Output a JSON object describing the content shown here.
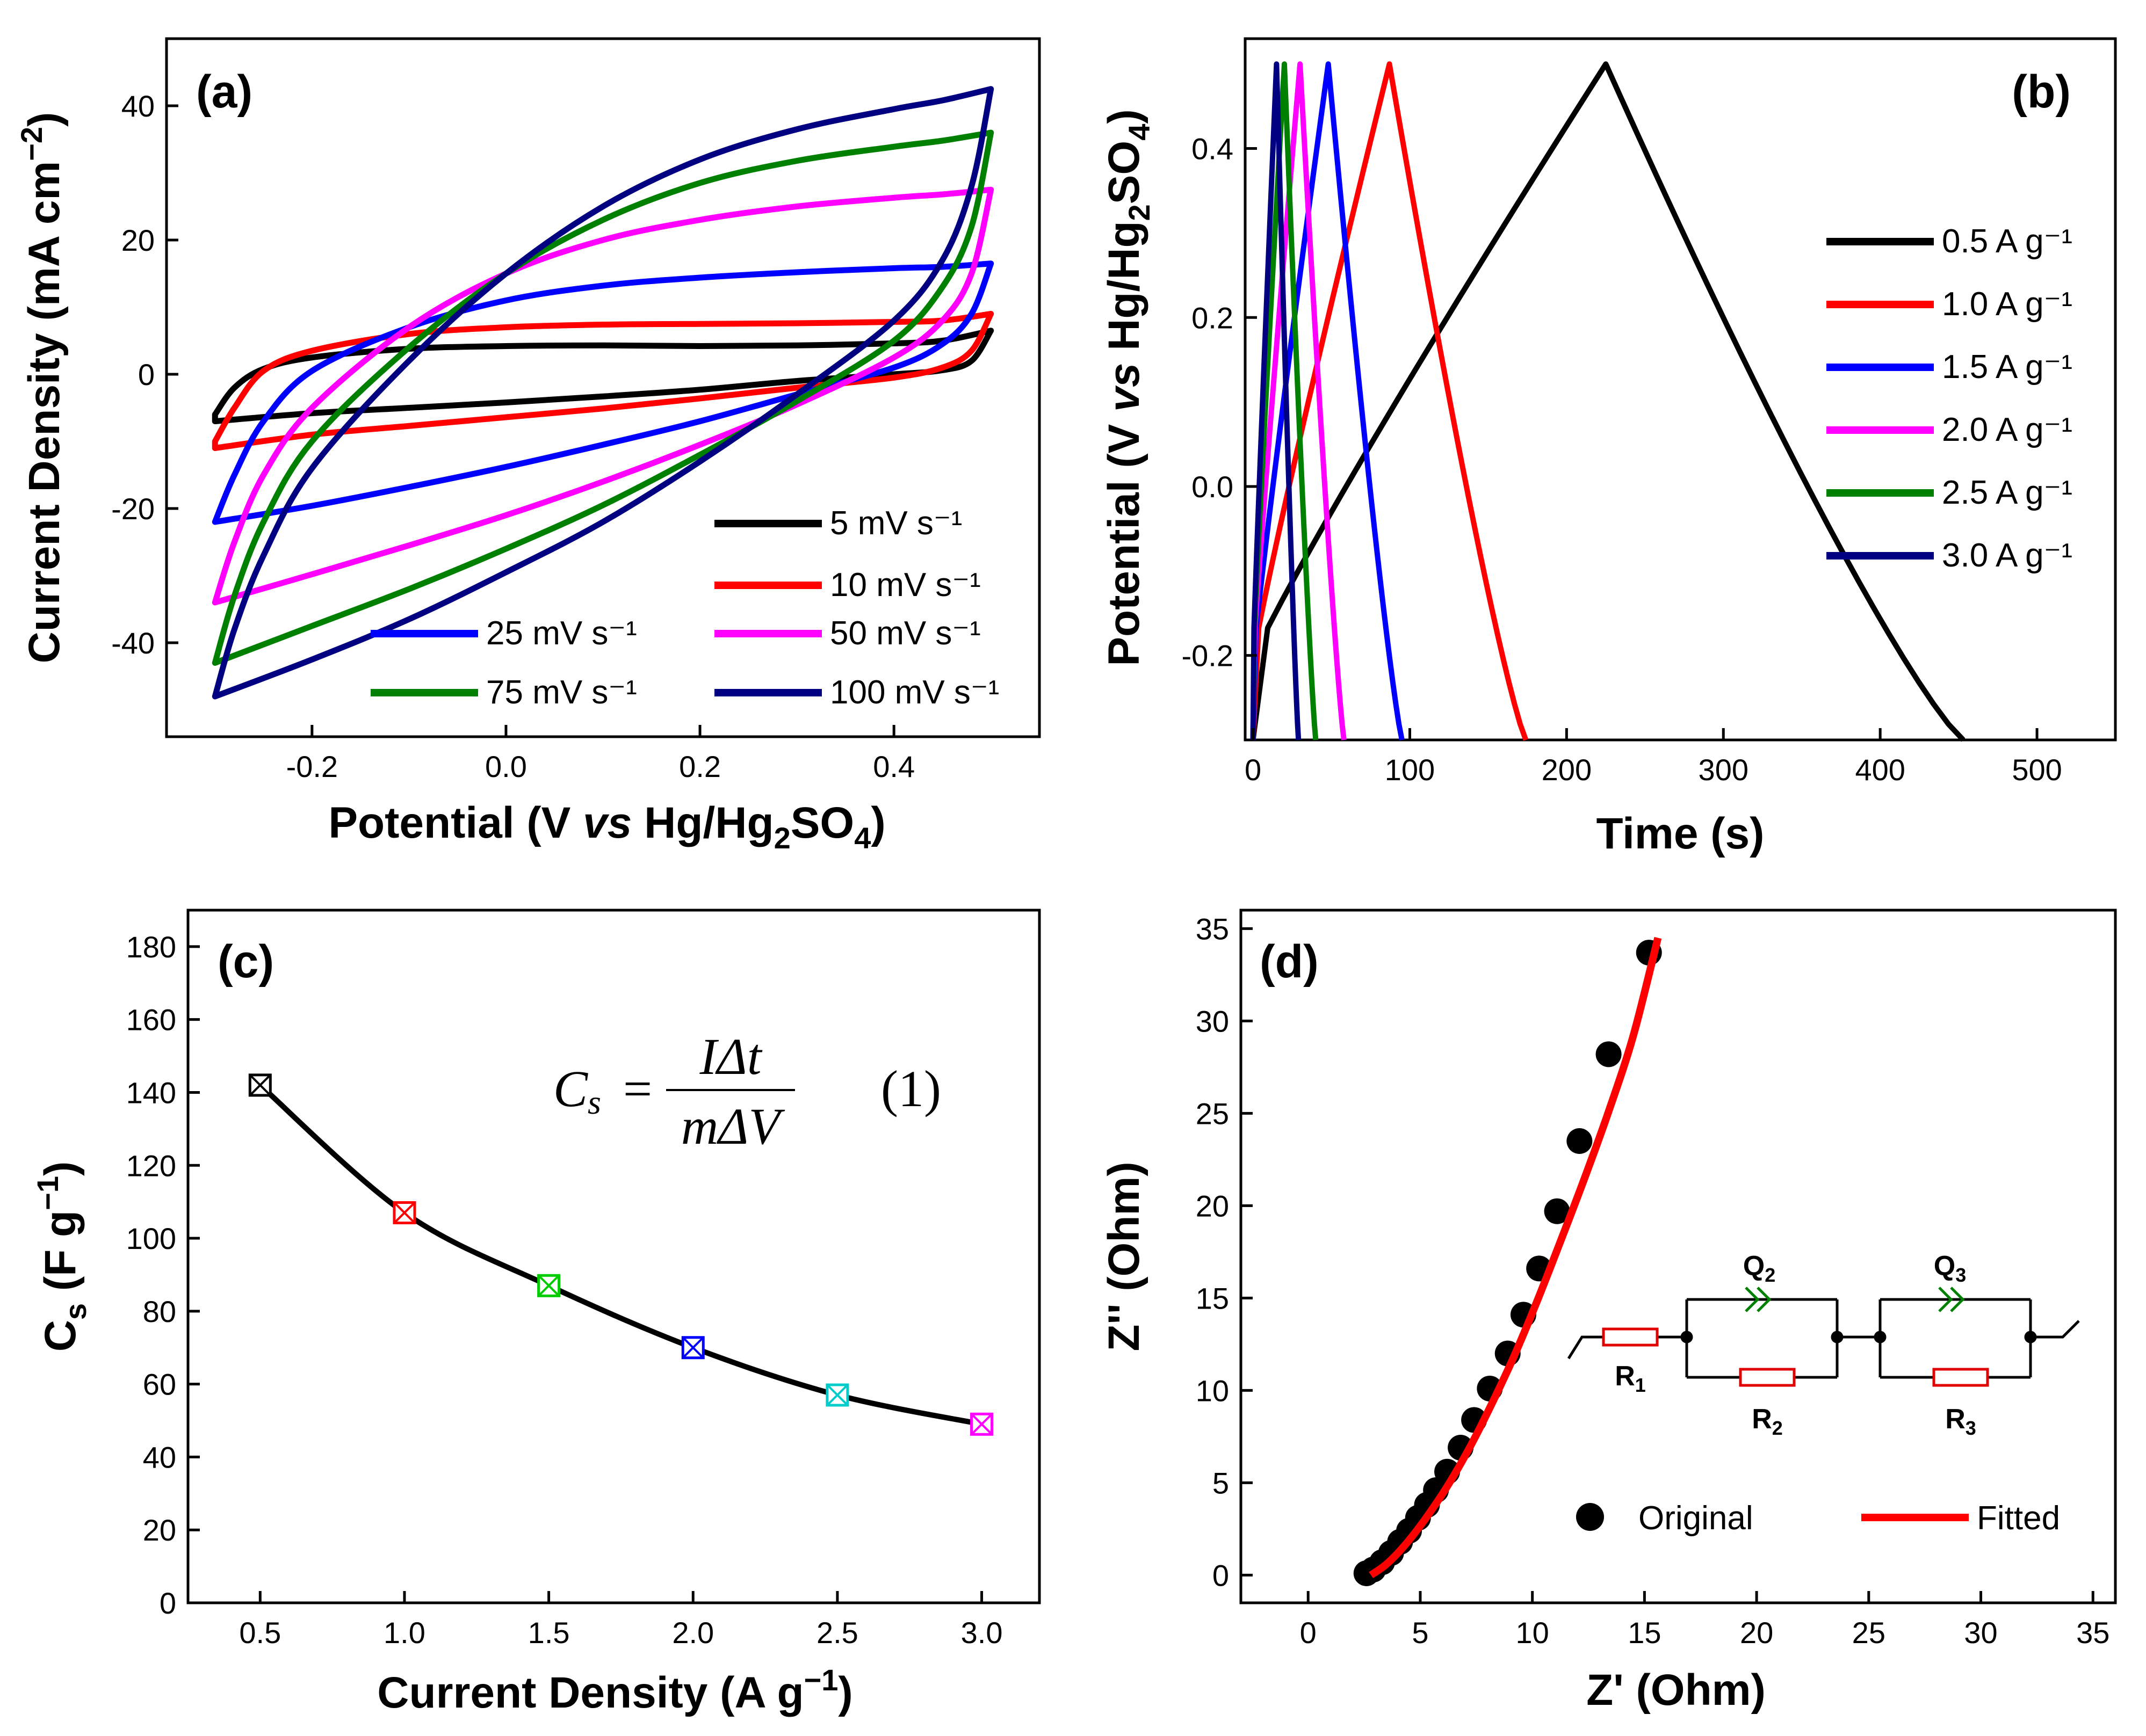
{
  "panels": {
    "a": {
      "label": "(a)",
      "ylabel_parts": [
        "Current Density (mA cm",
        "−2",
        ")"
      ],
      "xlabel_parts": [
        "Potential (V ",
        "vs",
        " Hg/Hg",
        "2",
        "SO",
        "4",
        ")"
      ]
    },
    "b": {
      "label": "(b)",
      "ylabel_parts": [
        "Potential (V ",
        "vs",
        " Hg/Hg",
        "2",
        "SO",
        "4",
        ")"
      ],
      "xlabel": "Time (s)"
    },
    "c": {
      "label": "(c)",
      "ylabel_parts": [
        "C",
        "s",
        " (F g",
        "−1",
        ")"
      ],
      "xlabel_parts": [
        "Current Density (A g",
        "−1",
        ")"
      ],
      "equation": {
        "lhs_main": "C",
        "lhs_sub": "s",
        "eq": "=",
        "num": "IΔt",
        "den": "mΔV",
        "number": "(1)"
      }
    },
    "d": {
      "label": "(d)",
      "ylabel": "Z'' (Ohm)",
      "xlabel": "Z' (Ohm)",
      "circuit": {
        "r1": [
          "R",
          "1"
        ],
        "r2": [
          "R",
          "2"
        ],
        "r3": [
          "R",
          "3"
        ],
        "q2": [
          "Q",
          "2"
        ],
        "q3": [
          "Q",
          "3"
        ]
      }
    }
  },
  "chart_data": [
    {
      "id": "a",
      "type": "line",
      "title": "(a)",
      "xlabel": "Potential (V vs Hg/Hg2SO4)",
      "ylabel": "Current Density (mA cm−2)",
      "xlim": [
        -0.35,
        0.55
      ],
      "ylim": [
        -54,
        50
      ],
      "xticks": [
        -0.2,
        0.0,
        0.2,
        0.4
      ],
      "xtick_labels": [
        "-0.2",
        "0.0",
        "0.2",
        "0.4"
      ],
      "yticks": [
        -40,
        -20,
        0,
        20,
        40
      ],
      "ytick_labels": [
        "-40",
        "-20",
        "0",
        "20",
        "40"
      ],
      "legend_position": "bottom-right",
      "series": [
        {
          "name": "5 mV s⁻¹",
          "color": "#000000",
          "upper": [
            [
              -0.3,
              -6
            ],
            [
              -0.28,
              -2
            ],
            [
              -0.25,
              0.8
            ],
            [
              -0.2,
              2.5
            ],
            [
              -0.1,
              3.8
            ],
            [
              0.0,
              4.2
            ],
            [
              0.1,
              4.3
            ],
            [
              0.2,
              4.2
            ],
            [
              0.3,
              4.3
            ],
            [
              0.4,
              4.6
            ],
            [
              0.45,
              5.0
            ],
            [
              0.5,
              6.5
            ]
          ],
          "lower": [
            [
              0.5,
              6.5
            ],
            [
              0.48,
              2.0
            ],
            [
              0.45,
              0.6
            ],
            [
              0.4,
              0.0
            ],
            [
              0.3,
              -1.0
            ],
            [
              0.2,
              -2.3
            ],
            [
              0.1,
              -3.3
            ],
            [
              0.0,
              -4.2
            ],
            [
              -0.1,
              -5.0
            ],
            [
              -0.2,
              -5.8
            ],
            [
              -0.3,
              -7
            ]
          ]
        },
        {
          "name": "10 mV s⁻¹",
          "color": "#ff0000",
          "upper": [
            [
              -0.3,
              -10
            ],
            [
              -0.28,
              -5
            ],
            [
              -0.25,
              0.5
            ],
            [
              -0.2,
              3.5
            ],
            [
              -0.1,
              6.0
            ],
            [
              0.0,
              7.0
            ],
            [
              0.1,
              7.4
            ],
            [
              0.2,
              7.5
            ],
            [
              0.3,
              7.6
            ],
            [
              0.4,
              7.8
            ],
            [
              0.45,
              8.0
            ],
            [
              0.5,
              9.0
            ]
          ],
          "lower": [
            [
              0.5,
              9.0
            ],
            [
              0.48,
              3.5
            ],
            [
              0.45,
              1.0
            ],
            [
              0.4,
              -0.5
            ],
            [
              0.3,
              -2.0
            ],
            [
              0.2,
              -3.6
            ],
            [
              0.1,
              -5.1
            ],
            [
              0.0,
              -6.4
            ],
            [
              -0.1,
              -7.7
            ],
            [
              -0.2,
              -9.0
            ],
            [
              -0.3,
              -11
            ]
          ]
        },
        {
          "name": "25 mV s⁻¹",
          "color": "#0000ff",
          "upper": [
            [
              -0.3,
              -22
            ],
            [
              -0.28,
              -15
            ],
            [
              -0.25,
              -7
            ],
            [
              -0.2,
              0.5
            ],
            [
              -0.1,
              7
            ],
            [
              0.0,
              11
            ],
            [
              0.1,
              13.2
            ],
            [
              0.2,
              14.4
            ],
            [
              0.3,
              15.2
            ],
            [
              0.4,
              15.8
            ],
            [
              0.45,
              16.0
            ],
            [
              0.5,
              16.5
            ]
          ],
          "lower": [
            [
              0.5,
              16.5
            ],
            [
              0.48,
              9.0
            ],
            [
              0.45,
              4.5
            ],
            [
              0.4,
              1.0
            ],
            [
              0.3,
              -3.0
            ],
            [
              0.2,
              -7.0
            ],
            [
              0.1,
              -10.5
            ],
            [
              0.0,
              -13.8
            ],
            [
              -0.1,
              -16.8
            ],
            [
              -0.2,
              -19.6
            ],
            [
              -0.3,
              -22
            ]
          ]
        },
        {
          "name": "50 mV s⁻¹",
          "color": "#ff00ff",
          "upper": [
            [
              -0.3,
              -34
            ],
            [
              -0.28,
              -25
            ],
            [
              -0.25,
              -15
            ],
            [
              -0.2,
              -5
            ],
            [
              -0.1,
              7
            ],
            [
              0.0,
              15
            ],
            [
              0.1,
              20
            ],
            [
              0.2,
              23
            ],
            [
              0.3,
              25
            ],
            [
              0.4,
              26.3
            ],
            [
              0.45,
              26.8
            ],
            [
              0.5,
              27.5
            ]
          ],
          "lower": [
            [
              0.5,
              27.5
            ],
            [
              0.48,
              15.0
            ],
            [
              0.45,
              8.0
            ],
            [
              0.4,
              2.5
            ],
            [
              0.3,
              -4.5
            ],
            [
              0.2,
              -10.5
            ],
            [
              0.1,
              -16
            ],
            [
              0.0,
              -21
            ],
            [
              -0.1,
              -25.5
            ],
            [
              -0.2,
              -29.8
            ],
            [
              -0.3,
              -34
            ]
          ]
        },
        {
          "name": "75 mV s⁻¹",
          "color": "#008000",
          "upper": [
            [
              -0.3,
              -43
            ],
            [
              -0.28,
              -33
            ],
            [
              -0.25,
              -22
            ],
            [
              -0.2,
              -10
            ],
            [
              -0.1,
              4
            ],
            [
              0.0,
              15
            ],
            [
              0.1,
              23
            ],
            [
              0.2,
              28.5
            ],
            [
              0.3,
              31.8
            ],
            [
              0.4,
              33.9
            ],
            [
              0.45,
              34.8
            ],
            [
              0.5,
              36
            ]
          ],
          "lower": [
            [
              0.5,
              36
            ],
            [
              0.48,
              22
            ],
            [
              0.45,
              13
            ],
            [
              0.4,
              5
            ],
            [
              0.3,
              -4
            ],
            [
              0.2,
              -12
            ],
            [
              0.1,
              -19.5
            ],
            [
              0.0,
              -26
            ],
            [
              -0.1,
              -32
            ],
            [
              -0.2,
              -37.5
            ],
            [
              -0.3,
              -43
            ]
          ]
        },
        {
          "name": "100 mV s⁻¹",
          "color": "#000080",
          "upper": [
            [
              -0.3,
              -48
            ],
            [
              -0.28,
              -38
            ],
            [
              -0.25,
              -27
            ],
            [
              -0.2,
              -14
            ],
            [
              -0.1,
              2
            ],
            [
              0.0,
              15
            ],
            [
              0.1,
              25
            ],
            [
              0.2,
              32
            ],
            [
              0.3,
              36.5
            ],
            [
              0.4,
              39.5
            ],
            [
              0.45,
              40.8
            ],
            [
              0.5,
              42.5
            ]
          ],
          "lower": [
            [
              0.5,
              42.5
            ],
            [
              0.48,
              28
            ],
            [
              0.45,
              17
            ],
            [
              0.4,
              8
            ],
            [
              0.3,
              -3
            ],
            [
              0.2,
              -13
            ],
            [
              0.1,
              -22
            ],
            [
              0.0,
              -29.5
            ],
            [
              -0.1,
              -36.5
            ],
            [
              -0.2,
              -42.5
            ],
            [
              -0.3,
              -48
            ]
          ]
        }
      ]
    },
    {
      "id": "b",
      "type": "line",
      "title": "(b)",
      "xlabel": "Time (s)",
      "ylabel": "Potential (V vs Hg/Hg2SO4)",
      "xlim": [
        -5,
        550
      ],
      "ylim": [
        -0.3,
        0.53
      ],
      "xticks": [
        0,
        100,
        200,
        300,
        400,
        500
      ],
      "xtick_labels": [
        "0",
        "100",
        "200",
        "300",
        "400",
        "500"
      ],
      "yticks": [
        -0.2,
        0.0,
        0.2,
        0.4
      ],
      "ytick_labels": [
        "-0.2",
        "0.0",
        "0.2",
        "0.4"
      ],
      "legend_position": "right",
      "series": [
        {
          "name": "0.5 A g⁻¹",
          "color": "#000000",
          "t_peak": 225,
          "t_end": 453
        },
        {
          "name": "1.0 A g⁻¹",
          "color": "#ff0000",
          "t_peak": 87,
          "t_end": 174
        },
        {
          "name": "1.5 A g⁻¹",
          "color": "#0000ff",
          "t_peak": 48,
          "t_end": 95
        },
        {
          "name": "2.0 A g⁻¹",
          "color": "#ff00ff",
          "t_peak": 30,
          "t_end": 58
        },
        {
          "name": "2.5 A g⁻¹",
          "color": "#008000",
          "t_peak": 20,
          "t_end": 40
        },
        {
          "name": "3.0 A g⁻¹",
          "color": "#000080",
          "t_peak": 15,
          "t_end": 29
        }
      ]
    },
    {
      "id": "c",
      "type": "line",
      "title": "(c)",
      "xlabel": "Current Density (A g−1)",
      "ylabel": "Cs (F g−1)",
      "xlim": [
        0.25,
        3.2
      ],
      "ylim": [
        0,
        190
      ],
      "xticks": [
        0.5,
        1.0,
        1.5,
        2.0,
        2.5,
        3.0
      ],
      "xtick_labels": [
        "0.5",
        "1.0",
        "1.5",
        "2.0",
        "2.5",
        "3.0"
      ],
      "yticks": [
        0,
        20,
        40,
        60,
        80,
        100,
        120,
        140,
        160,
        180
      ],
      "ytick_labels": [
        "0",
        "20",
        "40",
        "60",
        "80",
        "100",
        "120",
        "140",
        "160",
        "180"
      ],
      "x": [
        0.5,
        1.0,
        1.5,
        2.0,
        2.5,
        3.0
      ],
      "y": [
        142,
        107,
        87,
        70,
        57,
        49
      ],
      "marker_colors": [
        "#000000",
        "#ff0000",
        "#00cc00",
        "#0000ff",
        "#00cccc",
        "#ff00ff"
      ]
    },
    {
      "id": "d",
      "type": "scatter",
      "title": "(d)",
      "xlabel": "Z' (Ohm)",
      "ylabel": "Z'' (Ohm)",
      "xlim": [
        -3,
        36
      ],
      "ylim": [
        -1.5,
        36
      ],
      "xticks": [
        0,
        5,
        10,
        15,
        20,
        25,
        30,
        35
      ],
      "xtick_labels": [
        "0",
        "5",
        "10",
        "15",
        "20",
        "25",
        "30",
        "35"
      ],
      "yticks": [
        0,
        5,
        10,
        15,
        20,
        25,
        30,
        35
      ],
      "ytick_labels": [
        "0",
        "5",
        "10",
        "15",
        "20",
        "25",
        "30",
        "35"
      ],
      "legend_position": "bottom-right",
      "series": [
        {
          "name": "Original",
          "kind": "points",
          "color": "#000000",
          "x": [
            2.6,
            2.9,
            3.3,
            3.7,
            4.1,
            4.5,
            4.9,
            5.3,
            5.7,
            6.2,
            6.8,
            7.4,
            8.1,
            8.9,
            9.6,
            10.3,
            11.1,
            12.1,
            13.4,
            15.2
          ],
          "y": [
            0.1,
            0.3,
            0.7,
            1.2,
            1.8,
            2.4,
            3.1,
            3.8,
            4.6,
            5.6,
            6.9,
            8.4,
            10.1,
            12.0,
            14.1,
            16.6,
            19.7,
            23.5,
            28.2,
            33.7
          ]
        },
        {
          "name": "Fitted",
          "kind": "line",
          "color": "#ff0000",
          "x": [
            2.8,
            3.5,
            4.3,
            5.2,
            6.2,
            7.2,
            8.2,
            9.2,
            10.2,
            11.2,
            12.3,
            13.4,
            14.5,
            15.6
          ],
          "y": [
            0.0,
            0.6,
            1.6,
            3.0,
            4.8,
            6.9,
            9.3,
            11.9,
            14.8,
            17.9,
            21.4,
            25.1,
            29.2,
            34.5
          ]
        }
      ]
    }
  ]
}
